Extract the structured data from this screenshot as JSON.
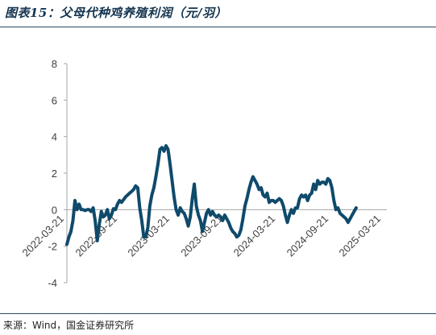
{
  "header": {
    "title": "图表15：父母代种鸡养殖利润（元/羽）"
  },
  "footer": {
    "source": "来源：Wind，国金证券研究所"
  },
  "chart_data": {
    "type": "line",
    "title": "父母代种鸡养殖利润（元/羽）",
    "xlabel": "",
    "ylabel": "",
    "ylim": [
      -4,
      8
    ],
    "yticks": [
      -4,
      -2,
      0,
      2,
      4,
      6,
      8
    ],
    "xlim": [
      "2022-03-21",
      "2025-03-21"
    ],
    "xticks": [
      "2022-03-21",
      "2022-09-21",
      "2023-03-21",
      "2023-09-21",
      "2024-03-21",
      "2024-09-21",
      "2025-03-21"
    ],
    "grid": false,
    "legend": "none",
    "line_color": "#0f4a6b",
    "series": [
      {
        "points": [
          [
            "2022-03-21",
            -1.9
          ],
          [
            "2022-03-28",
            -1.5
          ],
          [
            "2022-04-04",
            -1.2
          ],
          [
            "2022-04-11",
            -0.6
          ],
          [
            "2022-04-18",
            0.5
          ],
          [
            "2022-04-25",
            0.0
          ],
          [
            "2022-05-02",
            0.3
          ],
          [
            "2022-05-09",
            0.0
          ],
          [
            "2022-05-16",
            0.0
          ],
          [
            "2022-05-23",
            -0.05
          ],
          [
            "2022-05-30",
            0.0
          ],
          [
            "2022-06-06",
            0.0
          ],
          [
            "2022-06-13",
            -0.1
          ],
          [
            "2022-06-20",
            0.1
          ],
          [
            "2022-06-27",
            -0.6
          ],
          [
            "2022-07-04",
            -1.7
          ],
          [
            "2022-07-11",
            -0.8
          ],
          [
            "2022-07-18",
            -0.1
          ],
          [
            "2022-07-25",
            -0.4
          ],
          [
            "2022-08-01",
            -0.3
          ],
          [
            "2022-08-08",
            0.0
          ],
          [
            "2022-08-15",
            -0.5
          ],
          [
            "2022-08-22",
            -0.3
          ],
          [
            "2022-08-29",
            0.05
          ],
          [
            "2022-09-05",
            0.0
          ],
          [
            "2022-09-12",
            0.3
          ],
          [
            "2022-09-19",
            0.5
          ],
          [
            "2022-09-26",
            0.4
          ],
          [
            "2022-10-03",
            0.55
          ],
          [
            "2022-10-10",
            0.7
          ],
          [
            "2022-10-17",
            0.8
          ],
          [
            "2022-10-24",
            0.9
          ],
          [
            "2022-10-31",
            1.0
          ],
          [
            "2022-11-07",
            1.1
          ],
          [
            "2022-11-14",
            1.3
          ],
          [
            "2022-11-21",
            1.2
          ],
          [
            "2022-11-28",
            0.1
          ],
          [
            "2022-12-05",
            -0.6
          ],
          [
            "2022-12-12",
            -1.5
          ],
          [
            "2022-12-19",
            -1.5
          ],
          [
            "2022-12-26",
            -1.0
          ],
          [
            "2023-01-02",
            0.2
          ],
          [
            "2023-01-09",
            0.8
          ],
          [
            "2023-01-16",
            1.2
          ],
          [
            "2023-01-23",
            1.8
          ],
          [
            "2023-01-30",
            2.5
          ],
          [
            "2023-02-06",
            3.3
          ],
          [
            "2023-02-13",
            3.4
          ],
          [
            "2023-02-20",
            3.2
          ],
          [
            "2023-02-27",
            3.5
          ],
          [
            "2023-03-06",
            3.3
          ],
          [
            "2023-03-13",
            2.5
          ],
          [
            "2023-03-20",
            1.6
          ],
          [
            "2023-03-27",
            0.7
          ],
          [
            "2023-04-03",
            0.0
          ],
          [
            "2023-04-10",
            -0.3
          ],
          [
            "2023-04-17",
            0.1
          ],
          [
            "2023-04-24",
            -0.1
          ],
          [
            "2023-05-01",
            -0.2
          ],
          [
            "2023-05-08",
            -0.5
          ],
          [
            "2023-05-15",
            -0.9
          ],
          [
            "2023-05-22",
            -0.4
          ],
          [
            "2023-05-29",
            0.6
          ],
          [
            "2023-06-05",
            1.4
          ],
          [
            "2023-06-12",
            0.2
          ],
          [
            "2023-06-19",
            -0.3
          ],
          [
            "2023-06-26",
            -0.6
          ],
          [
            "2023-07-03",
            -1.2
          ],
          [
            "2023-07-10",
            -0.7
          ],
          [
            "2023-07-17",
            -0.2
          ],
          [
            "2023-07-24",
            0.0
          ],
          [
            "2023-07-31",
            -0.3
          ],
          [
            "2023-08-07",
            -0.1
          ],
          [
            "2023-08-14",
            -0.3
          ],
          [
            "2023-08-21",
            -0.4
          ],
          [
            "2023-08-28",
            -0.3
          ],
          [
            "2023-09-04",
            -0.4
          ],
          [
            "2023-09-11",
            -0.6
          ],
          [
            "2023-09-18",
            -0.3
          ],
          [
            "2023-09-25",
            -0.5
          ],
          [
            "2023-10-02",
            -0.7
          ],
          [
            "2023-10-09",
            -1.0
          ],
          [
            "2023-10-16",
            -1.2
          ],
          [
            "2023-10-23",
            -1.3
          ],
          [
            "2023-10-30",
            -1.5
          ],
          [
            "2023-11-06",
            -1.4
          ],
          [
            "2023-11-13",
            -1.1
          ],
          [
            "2023-11-20",
            -0.5
          ],
          [
            "2023-11-27",
            0.2
          ],
          [
            "2023-12-04",
            0.6
          ],
          [
            "2023-12-11",
            1.1
          ],
          [
            "2023-12-18",
            1.5
          ],
          [
            "2023-12-25",
            1.8
          ],
          [
            "2024-01-01",
            1.6
          ],
          [
            "2024-01-08",
            1.4
          ],
          [
            "2024-01-15",
            1.1
          ],
          [
            "2024-01-22",
            1.2
          ],
          [
            "2024-01-29",
            0.8
          ],
          [
            "2024-02-05",
            0.7
          ],
          [
            "2024-02-12",
            0.9
          ],
          [
            "2024-02-19",
            0.4
          ],
          [
            "2024-02-26",
            0.5
          ],
          [
            "2024-03-04",
            0.5
          ],
          [
            "2024-03-11",
            0.4
          ],
          [
            "2024-03-18",
            0.5
          ],
          [
            "2024-03-25",
            0.6
          ],
          [
            "2024-04-01",
            0.5
          ],
          [
            "2024-04-08",
            0.2
          ],
          [
            "2024-04-15",
            -0.3
          ],
          [
            "2024-04-22",
            -0.7
          ],
          [
            "2024-04-29",
            -0.3
          ],
          [
            "2024-05-06",
            0.0
          ],
          [
            "2024-05-13",
            -0.2
          ],
          [
            "2024-05-20",
            0.1
          ],
          [
            "2024-05-27",
            0.1
          ],
          [
            "2024-06-03",
            0.6
          ],
          [
            "2024-06-10",
            0.8
          ],
          [
            "2024-06-17",
            0.7
          ],
          [
            "2024-06-24",
            0.8
          ],
          [
            "2024-07-01",
            0.5
          ],
          [
            "2024-07-08",
            0.8
          ],
          [
            "2024-07-15",
            0.9
          ],
          [
            "2024-07-22",
            1.4
          ],
          [
            "2024-07-29",
            1.1
          ],
          [
            "2024-08-05",
            1.6
          ],
          [
            "2024-08-12",
            1.4
          ],
          [
            "2024-08-19",
            1.5
          ],
          [
            "2024-08-26",
            1.5
          ],
          [
            "2024-09-02",
            1.4
          ],
          [
            "2024-09-09",
            1.7
          ],
          [
            "2024-09-16",
            1.6
          ],
          [
            "2024-09-23",
            1.2
          ],
          [
            "2024-09-30",
            0.5
          ],
          [
            "2024-10-07",
            0.0
          ],
          [
            "2024-10-14",
            0.1
          ],
          [
            "2024-10-21",
            -0.2
          ],
          [
            "2024-10-28",
            -0.3
          ],
          [
            "2024-11-04",
            -0.4
          ],
          [
            "2024-11-11",
            -0.5
          ],
          [
            "2024-11-18",
            -0.7
          ],
          [
            "2024-11-25",
            -0.5
          ],
          [
            "2024-12-02",
            -0.3
          ],
          [
            "2024-12-09",
            -0.1
          ],
          [
            "2024-12-16",
            0.1
          ]
        ]
      }
    ]
  }
}
